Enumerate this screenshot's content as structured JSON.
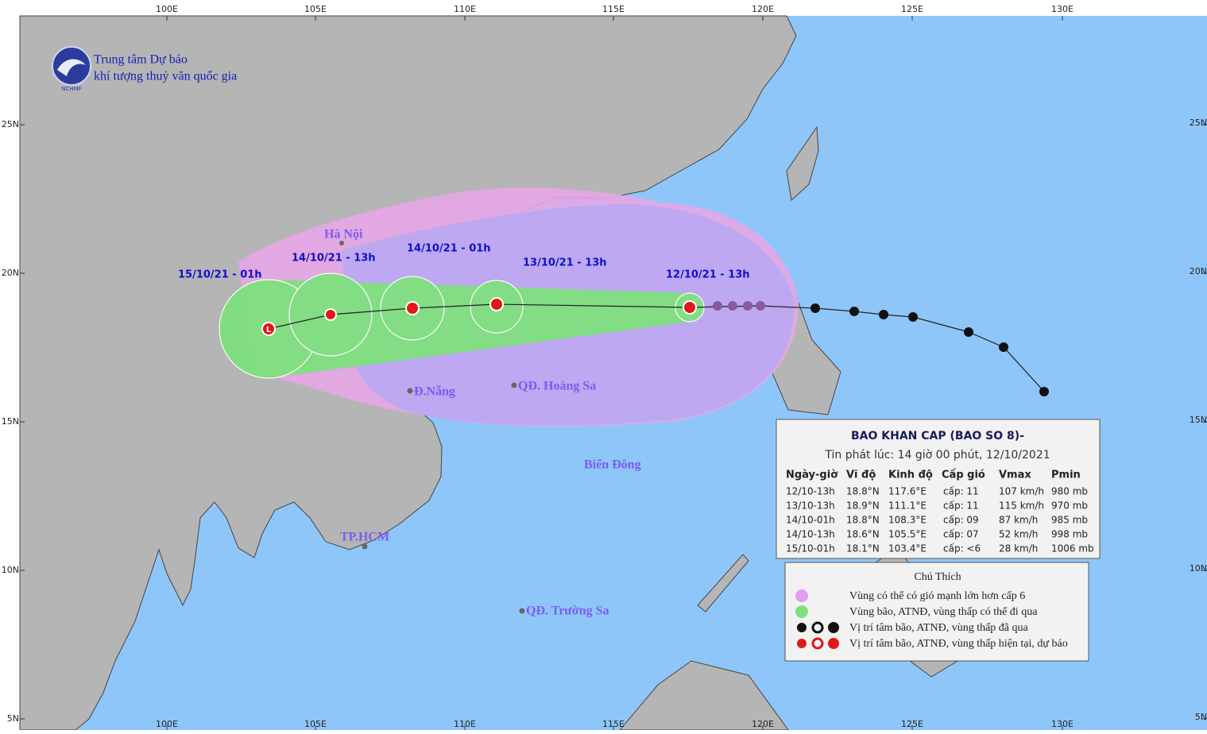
{
  "header": {
    "org_line1": "Trung tâm Dự báo",
    "org_line2": "khí tượng thuỷ văn quốc gia",
    "logo_text": "NCHMF"
  },
  "grid": {
    "lon_labels": [
      "100E",
      "105E",
      "110E",
      "115E",
      "120E",
      "125E",
      "130E"
    ],
    "lat_labels": [
      "25N",
      "20N",
      "15N",
      "10N",
      "5N"
    ]
  },
  "places": [
    "Hà Nội",
    "Đ.Nẵng",
    "QĐ. Hoàng Sa",
    "TP.HCM",
    "QĐ. Trường Sa",
    "Biển Đông"
  ],
  "forecast_labels": [
    "12/10/21 - 13h",
    "13/10/21 - 13h",
    "14/10/21 - 01h",
    "14/10/21 - 13h",
    "15/10/21 - 01h"
  ],
  "bulletin": {
    "title": "BAO KHAN CAP (BAO SO 8)-",
    "issued": "Tin phát lúc: 14 giờ 00 phút, 12/10/2021",
    "columns": [
      "Ngày-giờ",
      "Vĩ độ",
      "Kinh độ",
      "Cấp gió",
      "Vmax",
      "Pmin"
    ],
    "rows": [
      [
        "12/10-13h",
        "18.8°N",
        "117.6°E",
        "cấp: 11",
        "107 km/h",
        "980 mb"
      ],
      [
        "13/10-13h",
        "18.9°N",
        "111.1°E",
        "cấp: 11",
        "115 km/h",
        "970 mb"
      ],
      [
        "14/10-01h",
        "18.8°N",
        "108.3°E",
        "cấp: 09",
        "87 km/h",
        "985 mb"
      ],
      [
        "14/10-13h",
        "18.6°N",
        "105.5°E",
        "cấp: 07",
        "52 km/h",
        "998 mb"
      ],
      [
        "15/10-01h",
        "18.1°N",
        "103.4°E",
        "cấp: <6",
        "28 km/h",
        "1006 mb"
      ]
    ]
  },
  "legend": {
    "title": "Chú Thích",
    "items": [
      "Vùng có thể có gió mạnh lớn hơn cấp 6",
      "Vùng bão, ATNĐ, vùng thấp có thể đi qua",
      "Vị trí tâm bão, ATNĐ, vùng thấp đã qua",
      "Vị trí tâm bão, ATNĐ, vùng thấp hiện tại, dự báo"
    ]
  }
}
